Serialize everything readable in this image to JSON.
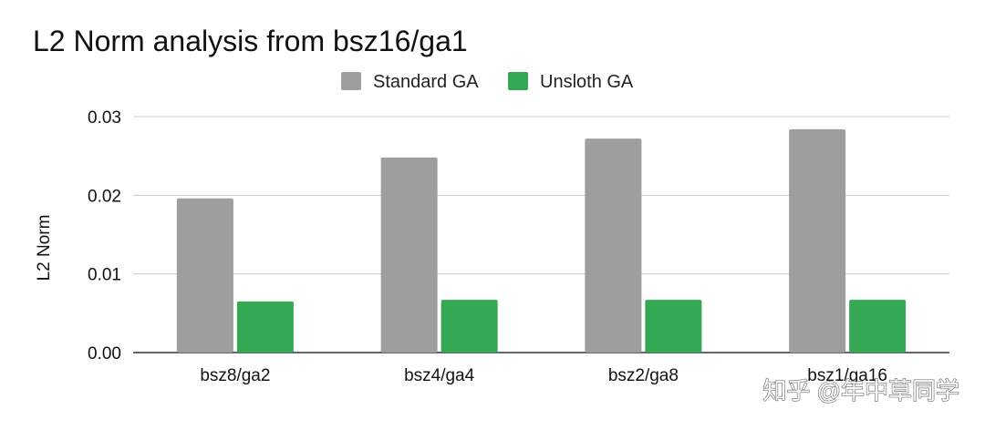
{
  "chart_data": {
    "type": "bar",
    "title": "L2 Norm analysis from bsz16/ga1",
    "xlabel": "",
    "ylabel": "L2 Norm",
    "categories": [
      "bsz8/ga2",
      "bsz4/ga4",
      "bsz2/ga8",
      "bsz1/ga16"
    ],
    "series": [
      {
        "name": "Standard GA",
        "color": "#9e9e9e",
        "values": [
          0.0196,
          0.0248,
          0.0272,
          0.0284
        ]
      },
      {
        "name": "Unsloth GA",
        "color": "#34a853",
        "values": [
          0.0065,
          0.0067,
          0.0067,
          0.0067
        ]
      }
    ],
    "ylim": [
      0,
      0.03
    ],
    "yticks": [
      "0.00",
      "0.01",
      "0.02",
      "0.03"
    ],
    "ytick_values": [
      0,
      0.01,
      0.02,
      0.03
    ],
    "grid": true,
    "legend_position": "top-center"
  },
  "watermark": "知乎 @年中草同学"
}
